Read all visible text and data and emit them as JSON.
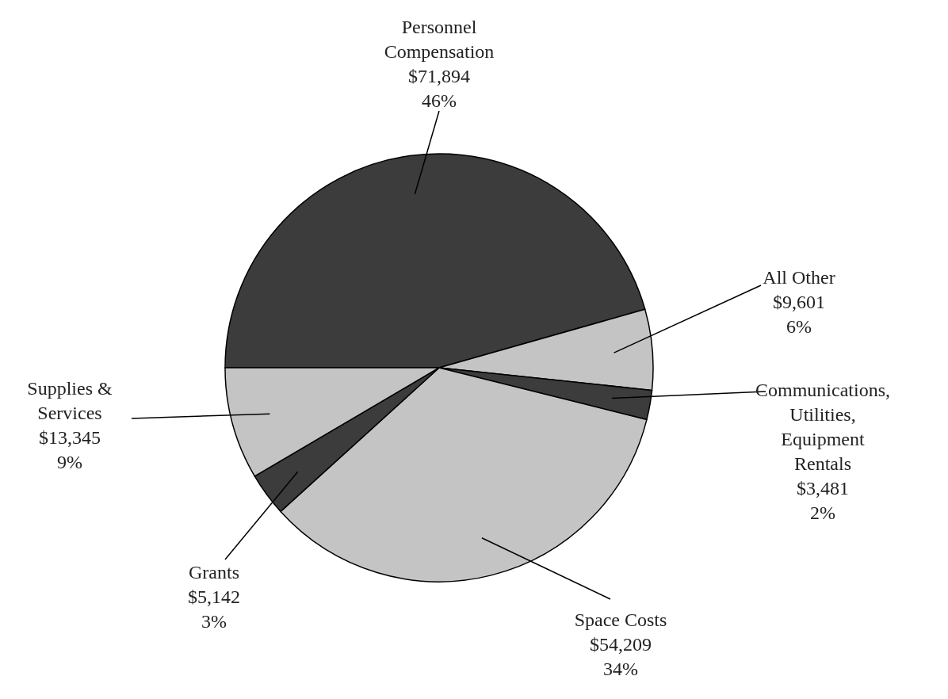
{
  "chart_data": {
    "type": "pie",
    "categories": [
      "Personnel\nCompensation",
      "All Other",
      "Communications,\nUtilities,\nEquipment\nRentals",
      "Space Costs",
      "Grants",
      "Supplies &\nServices"
    ],
    "values": [
      71894,
      9601,
      3481,
      54209,
      5142,
      13345
    ],
    "colors": [
      "#3c3c3c",
      "#c4c4c4",
      "#3c3c3c",
      "#c4c4c4",
      "#3c3c3c",
      "#c4c4c4"
    ],
    "value_labels": [
      "$71,894\n46%",
      "$9,601\n6%",
      "$3,481\n2%",
      "$54,209\n34%",
      "$5,142\n3%",
      "$13,345\n9%"
    ]
  }
}
